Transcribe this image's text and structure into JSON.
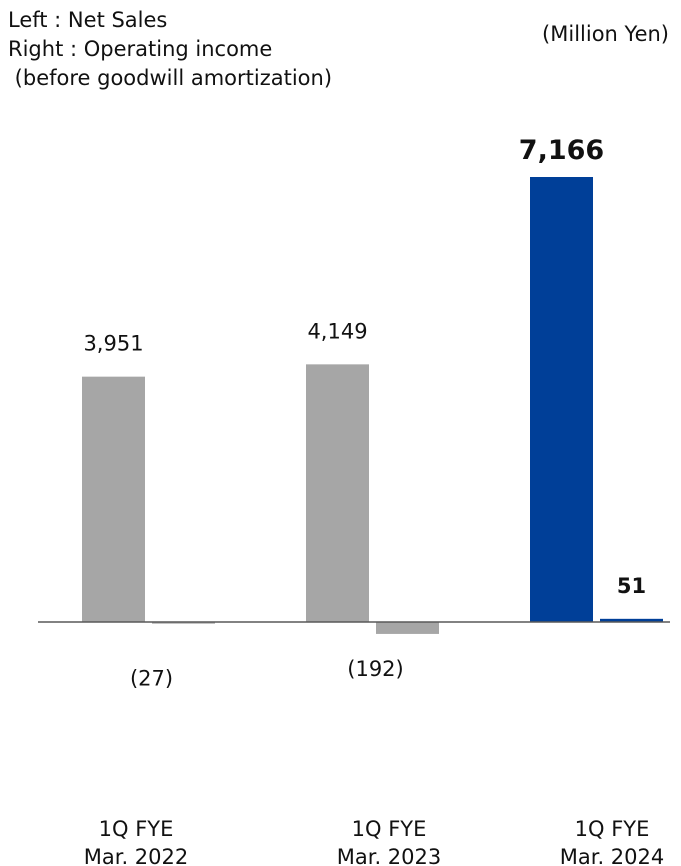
{
  "legend": {
    "left_label": "Left : Net Sales",
    "right_label": "Right : Operating income",
    "right_sublabel": " (before goodwill amortization)"
  },
  "unit_label": "(Million Yen)",
  "colors": {
    "past": "#a6a6a6",
    "current": "#003f98",
    "axis": "#595959"
  },
  "chart_data": {
    "type": "bar",
    "categories": [
      [
        "1Q FYE",
        "Mar. 2022"
      ],
      [
        "1Q FYE",
        "Mar. 2023"
      ],
      [
        "1Q FYE",
        "Mar. 2024"
      ]
    ],
    "series": [
      {
        "name": "Net Sales",
        "values": [
          3951,
          4149,
          7166
        ],
        "labels": [
          "3,951",
          "4,149",
          "7,166"
        ]
      },
      {
        "name": "Operating income (before goodwill amortization)",
        "values": [
          -27,
          -192,
          51
        ],
        "labels": [
          "(27)",
          "(192)",
          "51"
        ]
      }
    ],
    "highlight_category_index": 2
  }
}
